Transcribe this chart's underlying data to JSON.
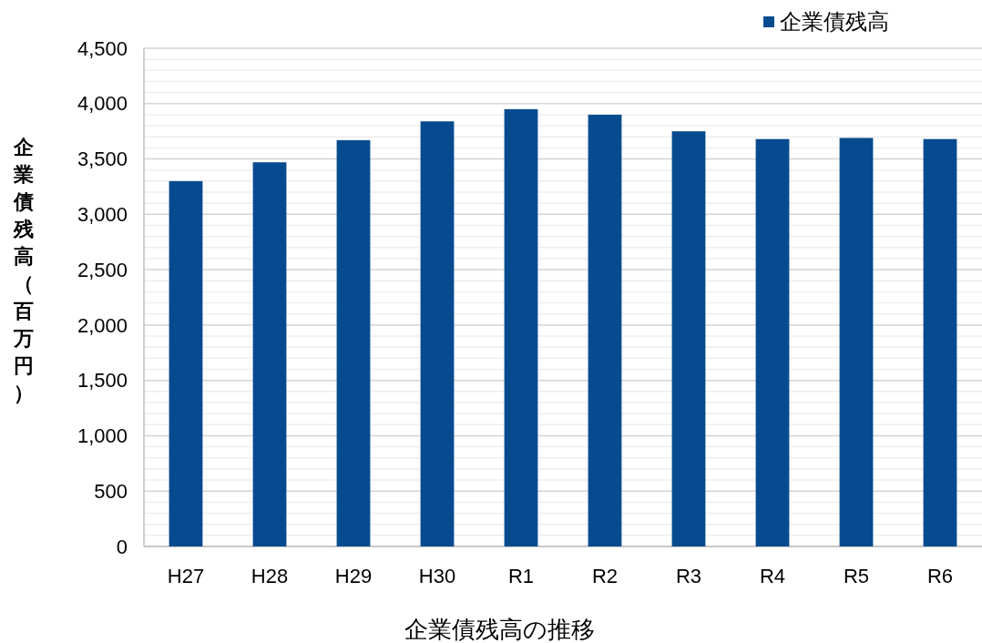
{
  "chart_data": {
    "type": "bar",
    "xlabel": "企業債残高の推移",
    "ylabel": "企業債残高（百万円）",
    "categories": [
      "H27",
      "H28",
      "H29",
      "H30",
      "R1",
      "R2",
      "R3",
      "R4",
      "R5",
      "R6"
    ],
    "series": [
      {
        "name": "企業債残高",
        "color": "#064b8f",
        "values": [
          3300,
          3470,
          3670,
          3840,
          3950,
          3900,
          3750,
          3680,
          3690,
          3680
        ]
      }
    ],
    "ylim": [
      0,
      4500
    ],
    "yticks": [
      0,
      500,
      {
        "value": 1000,
        "label": "1,000"
      },
      {
        "value": 1500,
        "label": "1,500"
      },
      {
        "value": 2000,
        "label": "2,000"
      },
      {
        "value": 2500,
        "label": "2,500"
      },
      {
        "value": 3000,
        "label": "3,000"
      },
      {
        "value": 3500,
        "label": "3,500"
      },
      {
        "value": 4000,
        "label": "4,000"
      },
      {
        "value": 4500,
        "label": "4,500"
      }
    ],
    "grid": "y",
    "legend": "top right"
  }
}
